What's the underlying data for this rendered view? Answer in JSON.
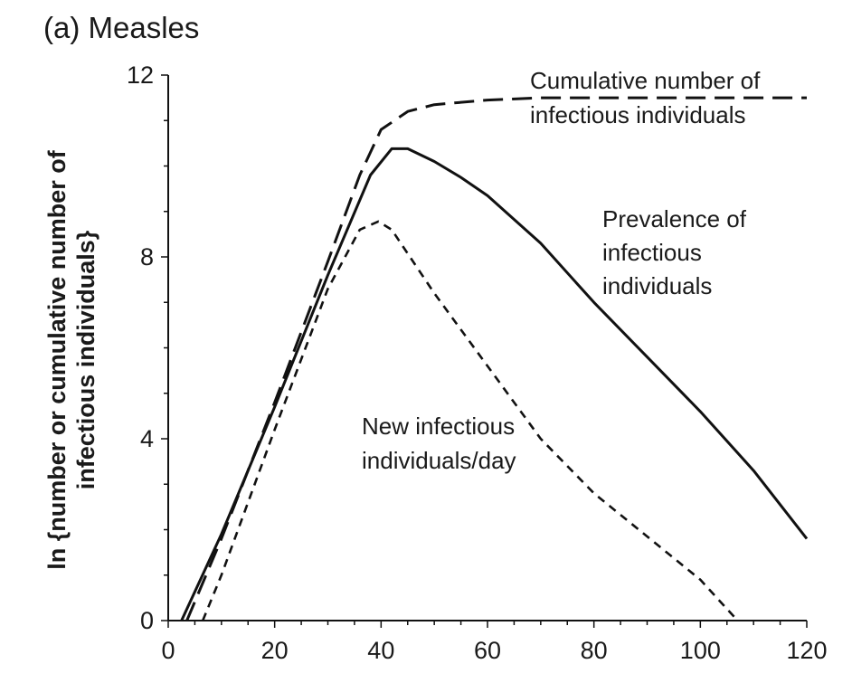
{
  "chart_data": {
    "type": "line",
    "title": "(a) Measles",
    "xlabel": "",
    "ylabel": [
      "ln {number or cumulative number of",
      "infectious individuals}"
    ],
    "xlim": [
      0,
      120
    ],
    "ylim": [
      0,
      12
    ],
    "xticks": [
      0,
      20,
      40,
      60,
      80,
      100,
      120
    ],
    "yticks": [
      0,
      4,
      8,
      12
    ],
    "grid": false,
    "series": [
      {
        "name": "Cumulative number of infectious individuals",
        "style": "long-dash",
        "x": [
          3.5,
          10,
          20,
          30,
          36,
          40,
          45,
          50,
          60,
          70,
          80,
          100,
          120
        ],
        "y": [
          0,
          1.8,
          4.8,
          7.9,
          9.8,
          10.8,
          11.2,
          11.35,
          11.45,
          11.5,
          11.5,
          11.5,
          11.5
        ]
      },
      {
        "name": "Prevalence of infectious individuals",
        "style": "solid",
        "x": [
          2.5,
          10,
          20,
          30,
          38,
          42,
          45,
          50,
          55,
          60,
          70,
          80,
          90,
          100,
          110,
          120
        ],
        "y": [
          0,
          1.9,
          4.7,
          7.6,
          9.8,
          10.38,
          10.38,
          10.1,
          9.75,
          9.35,
          8.3,
          7.0,
          5.8,
          4.6,
          3.3,
          1.8
        ]
      },
      {
        "name": "New infectious individuals/day",
        "style": "short-dash",
        "x": [
          6.5,
          10,
          20,
          30,
          36,
          39.5,
          42,
          50,
          60,
          70,
          80,
          90,
          100,
          107
        ],
        "y": [
          0,
          1.0,
          4.2,
          7.3,
          8.6,
          8.78,
          8.6,
          7.2,
          5.6,
          4.0,
          2.8,
          1.85,
          0.9,
          0
        ]
      }
    ],
    "annotations": [
      {
        "lines": [
          "Cumulative number of",
          "infectious individuals"
        ]
      },
      {
        "lines": [
          "Prevalence of",
          "infectious",
          "individuals"
        ]
      },
      {
        "lines": [
          "New infectious",
          "individuals/day"
        ]
      }
    ]
  }
}
